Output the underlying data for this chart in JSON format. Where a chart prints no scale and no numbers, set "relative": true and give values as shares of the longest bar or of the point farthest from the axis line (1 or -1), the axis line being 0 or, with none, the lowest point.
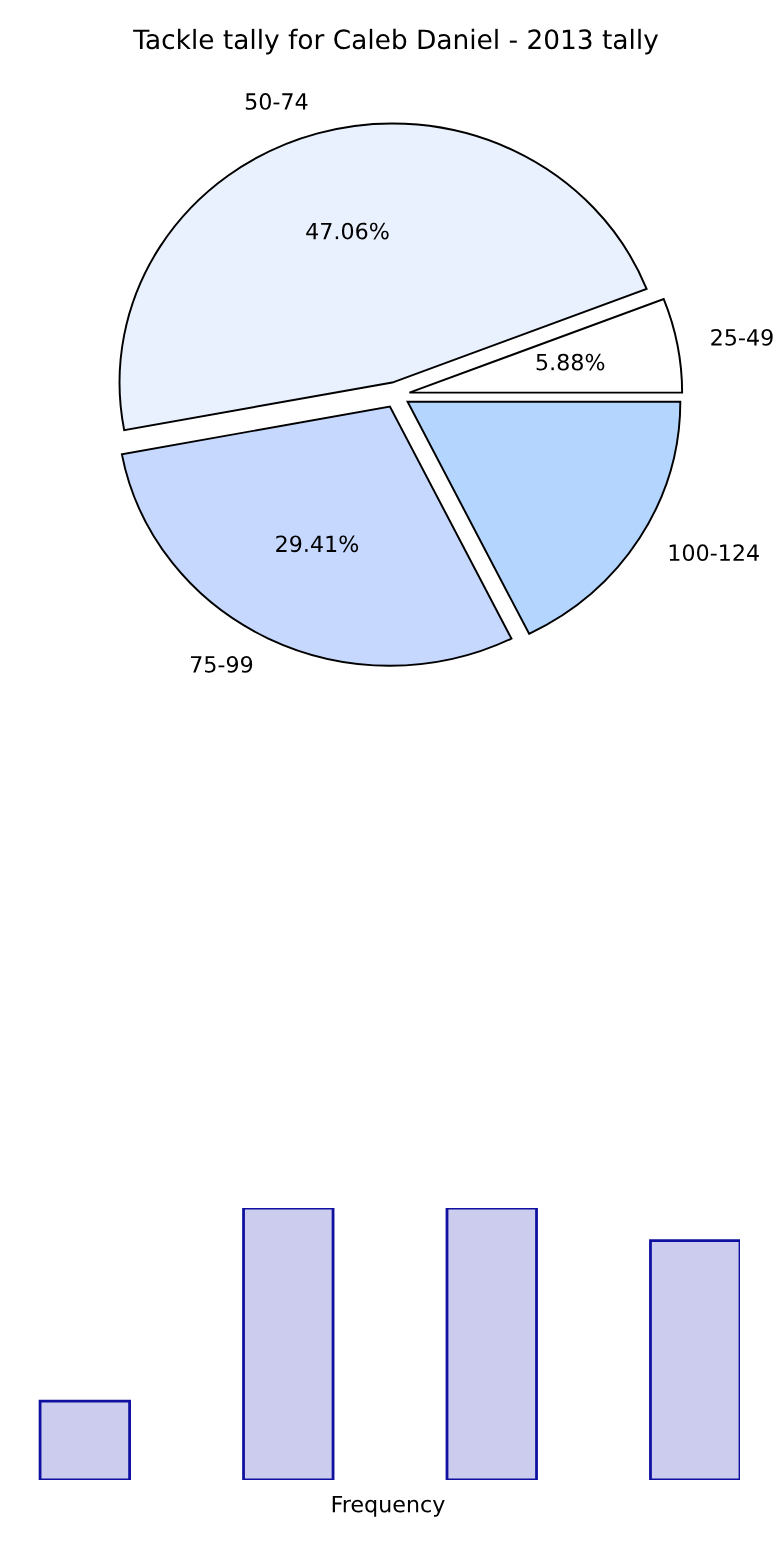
{
  "chart_data": [
    {
      "type": "pie",
      "title": "Tackle tally for Caleb Daniel - 2013 tally",
      "categories": [
        "25-49",
        "50-74",
        "75-99",
        "100-124"
      ],
      "values": [
        5.88,
        47.06,
        29.41,
        17.65
      ],
      "value_labels": [
        "5.88%",
        "47.06%",
        "29.41%",
        null
      ],
      "colors": [
        "#ffffff",
        "#eaf1fe",
        "#c6d8fe",
        "#b3d5fe"
      ]
    },
    {
      "type": "bar",
      "relative": true,
      "categories": [
        null,
        null,
        null,
        null
      ],
      "values": [
        0.29,
        1,
        1,
        0.88
      ],
      "color": "#ccccee",
      "xlabel": "Frequency"
    }
  ]
}
